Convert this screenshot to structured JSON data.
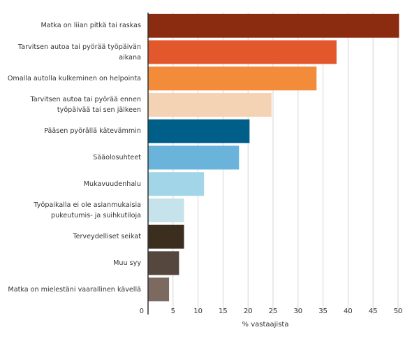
{
  "chart_data": {
    "type": "bar",
    "orientation": "horizontal",
    "categories": [
      "Matka on liian pitkä tai raskas",
      "Tarvitsen autoa tai pyörää työpäivän aikana",
      "Omalla autolla kulkeminen on helpointa",
      "Tarvitsen autoa tai pyörää ennen työpäivää tai sen jälkeen",
      "Pääsen pyörällä kätevämmin",
      "Sääolosuhteet",
      "Mukavuudenhalu",
      "Työpaikalla ei ole asianmukaisia pukeutumis- ja suihkutiloja",
      "Terveydelliset seikat",
      "Muu syy",
      "Matka on mielestäni vaarallinen kävellä"
    ],
    "values": [
      50.2,
      37.7,
      33.7,
      24.7,
      20.3,
      18.2,
      11.2,
      7.2,
      7.2,
      6.2,
      4.2
    ],
    "colors": [
      "#8b2b10",
      "#e2572b",
      "#f28c3a",
      "#f4d3b4",
      "#005f89",
      "#6ab4dc",
      "#a3d5e9",
      "#c6e2ea",
      "#3b2e1e",
      "#55463e",
      "#7c6a60"
    ],
    "xlabel": "% vastaajista",
    "ylabel": "",
    "title": "",
    "xlim": [
      0,
      50
    ],
    "xticks": [
      0,
      5,
      10,
      15,
      20,
      25,
      30,
      35,
      40,
      45,
      50
    ],
    "grid": true,
    "legend": "none"
  }
}
